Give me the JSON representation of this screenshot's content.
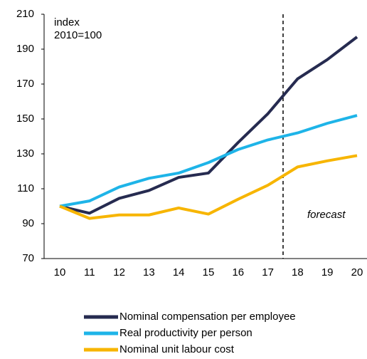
{
  "chart_data": {
    "type": "line",
    "annotations": [
      "index",
      "2010=100",
      "forecast"
    ],
    "categories": [
      "10",
      "11",
      "12",
      "13",
      "14",
      "15",
      "16",
      "17",
      "18",
      "19",
      "20"
    ],
    "series": [
      {
        "name": "Nominal compensation per employee",
        "color": "#262b50",
        "values": [
          100,
          96,
          104.5,
          109,
          116.5,
          119,
          136.5,
          153,
          173,
          184,
          197
        ]
      },
      {
        "name": "Real productivity per person",
        "color": "#1eb4e8",
        "values": [
          100,
          103,
          111,
          116,
          119,
          125,
          132.5,
          138,
          142,
          147.5,
          152
        ]
      },
      {
        "name": "Nominal unit labour cost",
        "color": "#f7b500",
        "values": [
          100,
          93,
          95,
          95,
          99,
          95.5,
          104,
          112,
          122.5,
          126,
          129
        ]
      }
    ],
    "ylim": [
      70,
      210
    ],
    "yticks": [
      70,
      90,
      110,
      130,
      150,
      170,
      190,
      210
    ]
  }
}
